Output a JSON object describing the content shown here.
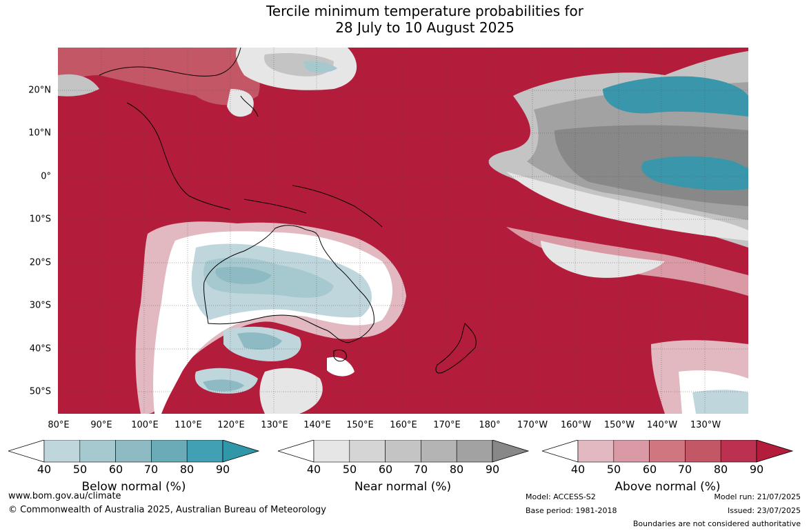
{
  "title": {
    "line1": "Tercile minimum temperature probabilities for",
    "line2": "28 July to 10 August 2025"
  },
  "axes": {
    "lon_labels": [
      "80°E",
      "90°E",
      "100°E",
      "110°E",
      "120°E",
      "130°E",
      "140°E",
      "150°E",
      "160°E",
      "170°E",
      "180°",
      "170°W",
      "160°W",
      "150°W",
      "140°W",
      "130°W"
    ],
    "lat_labels": [
      "20°N",
      "10°N",
      "0°",
      "10°S",
      "20°S",
      "30°S",
      "40°S",
      "50°S"
    ]
  },
  "colorbars": [
    {
      "title": "Below normal (%)",
      "ticks": [
        "40",
        "50",
        "60",
        "70",
        "80",
        "90"
      ],
      "colors": [
        "#bfd6dc",
        "#a6c8cf",
        "#8ebac4",
        "#6aabb7",
        "#41a0b3",
        "#3097a9"
      ]
    },
    {
      "title": "Near normal (%)",
      "ticks": [
        "40",
        "50",
        "60",
        "70",
        "80",
        "90"
      ],
      "colors": [
        "#e6e6e6",
        "#d5d5d5",
        "#c4c4c4",
        "#b4b4b4",
        "#a2a2a2",
        "#888888"
      ]
    },
    {
      "title": "Above normal (%)",
      "ticks": [
        "40",
        "50",
        "60",
        "70",
        "80",
        "90"
      ],
      "colors": [
        "#e2b9c1",
        "#d99aa5",
        "#cf7680",
        "#c35766",
        "#bc3150",
        "#b31d3b"
      ]
    }
  ],
  "colors": {
    "above_dominant": "#b31d3b",
    "grid": "#555555"
  },
  "footer": {
    "website": "www.bom.gov.au/climate",
    "copyright": "© Commonwealth of Australia 2025, Australian Bureau of Meteorology",
    "model": "Model: ACCESS-S2",
    "base_period": "Base period: 1981-2018",
    "model_run": "Model run: 21/07/2025",
    "issued": "Issued: 23/07/2025",
    "disclaimer": "Boundaries are not considered authoritative"
  }
}
